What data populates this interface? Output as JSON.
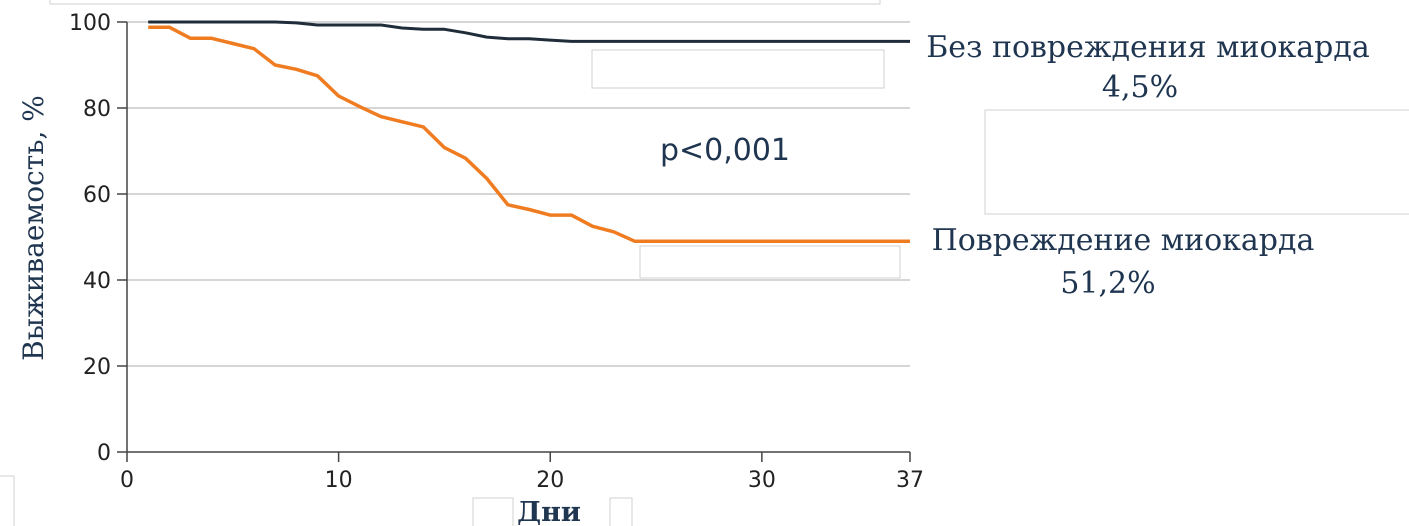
{
  "chart_data": {
    "type": "line",
    "xlabel": "Дни",
    "ylabel": "Выживаемость, %",
    "xlim": [
      0,
      37
    ],
    "ylim": [
      0,
      100
    ],
    "x_ticks": [
      0,
      10,
      20,
      30,
      37
    ],
    "y_ticks": [
      0,
      20,
      40,
      60,
      80,
      100
    ],
    "grid": "horizontal",
    "p_value": "p<0,001",
    "series": [
      {
        "name": "Без повреждения миокарда",
        "end_label": "4,5%",
        "color": "#1f2d3a",
        "points": [
          [
            1,
            100
          ],
          [
            7,
            100
          ],
          [
            8,
            99.8
          ],
          [
            9,
            99.3
          ],
          [
            12,
            99.3
          ],
          [
            13,
            98.6
          ],
          [
            14,
            98.3
          ],
          [
            15,
            98.3
          ],
          [
            16,
            97.5
          ],
          [
            17,
            96.5
          ],
          [
            18,
            96.1
          ],
          [
            19,
            96.1
          ],
          [
            20,
            95.8
          ],
          [
            21,
            95.5
          ],
          [
            37,
            95.5
          ]
        ]
      },
      {
        "name": "Повреждение миокарда",
        "end_label": "51,2%",
        "color": "#f07c22",
        "points": [
          [
            1,
            98.8
          ],
          [
            2,
            98.8
          ],
          [
            3,
            96.2
          ],
          [
            4,
            96.2
          ],
          [
            5,
            95
          ],
          [
            6,
            93.8
          ],
          [
            7,
            90
          ],
          [
            8,
            89
          ],
          [
            9,
            87.5
          ],
          [
            10,
            82.8
          ],
          [
            11,
            80.3
          ],
          [
            12,
            78
          ],
          [
            13,
            76.8
          ],
          [
            14,
            75.6
          ],
          [
            15,
            70.8
          ],
          [
            16,
            68.3
          ],
          [
            17,
            63.6
          ],
          [
            18,
            57.5
          ],
          [
            19,
            56.4
          ],
          [
            20,
            55.1
          ],
          [
            21,
            55.1
          ],
          [
            22,
            52.5
          ],
          [
            23,
            51.2
          ],
          [
            24,
            49
          ],
          [
            37,
            49
          ]
        ]
      }
    ]
  }
}
